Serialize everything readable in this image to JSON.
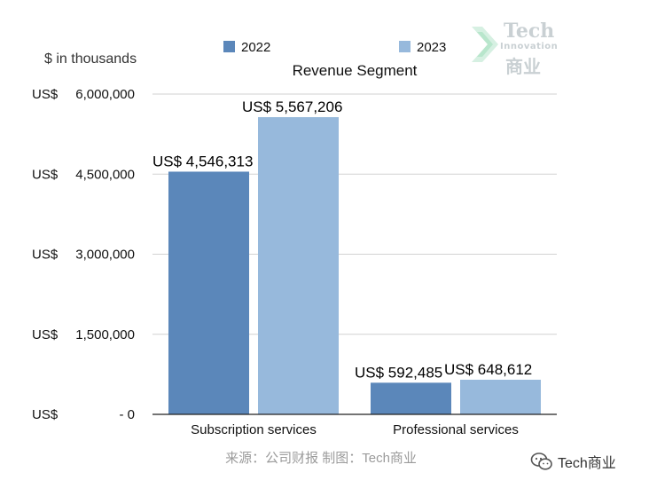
{
  "chart_data": {
    "type": "bar",
    "title": "Revenue Segment",
    "unit_label": "$ in thousands",
    "categories": [
      "Subscription services",
      "Professional services"
    ],
    "series": [
      {
        "name": "2022",
        "color": "#5b87ba",
        "values": [
          4546313,
          592485
        ],
        "labels": [
          "US$   4,546,313",
          "US$   592,485"
        ]
      },
      {
        "name": "2023",
        "color": "#97b9dc",
        "values": [
          5567206,
          648612
        ],
        "labels": [
          "US$   5,567,206",
          "US$   648,612"
        ]
      }
    ],
    "ylim": [
      0,
      6000000
    ],
    "y_ticks": [
      {
        "value": 0,
        "prefix": "US$",
        "label": "- 0"
      },
      {
        "value": 1500000,
        "prefix": "US$",
        "label": "1,500,000"
      },
      {
        "value": 3000000,
        "prefix": "US$",
        "label": "3,000,000"
      },
      {
        "value": 4500000,
        "prefix": "US$",
        "label": "4,500,000"
      },
      {
        "value": 6000000,
        "prefix": "US$",
        "label": "6,000,000"
      }
    ],
    "grid": true,
    "legend_position": "top"
  },
  "logo": {
    "line1": "Tech",
    "line2": "Innovation",
    "line3": "商业"
  },
  "source_text": "来源：公司财报 制图：Tech商业",
  "wechat": {
    "icon": "wechat-icon",
    "name": "Tech商业"
  }
}
